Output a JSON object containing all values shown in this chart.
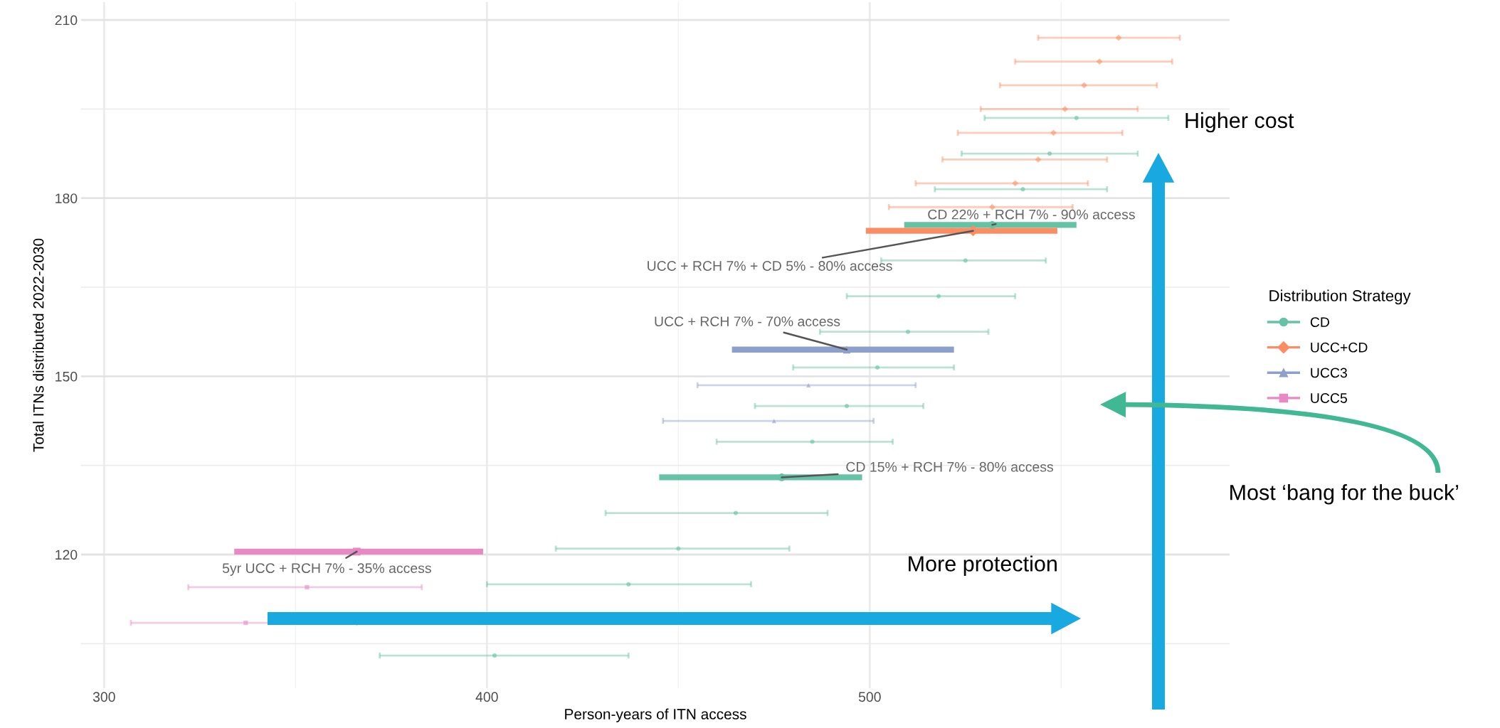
{
  "chart_data": {
    "type": "scatter",
    "xlabel": "Person-years of ITN access",
    "ylabel": "Total ITNs distributed 2022-2030",
    "legend_title": "Distribution Strategy",
    "legend": "right",
    "grid": true,
    "xlim": [
      294,
      594
    ],
    "xticks": [
      300,
      400,
      500
    ],
    "ylim": [
      97.5,
      213
    ],
    "yticks": [
      120,
      150,
      180,
      210
    ],
    "series": [
      {
        "name": "CD",
        "color": "#66c2a5",
        "marker": "circle",
        "x": [
          554,
          547,
          540,
          525,
          518,
          510,
          502,
          494,
          485,
          465,
          450,
          437,
          402
        ],
        "values": [
          193.5,
          187.5,
          181.5,
          169.5,
          163.5,
          157.5,
          151.5,
          145,
          139,
          127,
          121,
          115,
          103
        ],
        "xerrors": [
          [
            530,
            578
          ],
          [
            524,
            570
          ],
          [
            517,
            562
          ],
          [
            503,
            546
          ],
          [
            494,
            538
          ],
          [
            487,
            531
          ],
          [
            480,
            522
          ],
          [
            470,
            514
          ],
          [
            460,
            506
          ],
          [
            431,
            489
          ],
          [
            418,
            479
          ],
          [
            400,
            469
          ],
          [
            372,
            437
          ]
        ]
      },
      {
        "name": "UCC+CD",
        "color": "#fc8d62",
        "marker": "diamond",
        "x": [
          565,
          560,
          556,
          551,
          548,
          544,
          538,
          532
        ],
        "values": [
          207,
          203,
          199,
          195,
          191,
          186.5,
          182.5,
          178.5
        ],
        "xerrors": [
          [
            544,
            581
          ],
          [
            538,
            579
          ],
          [
            534,
            575
          ],
          [
            529,
            570
          ],
          [
            523,
            566
          ],
          [
            519,
            562
          ],
          [
            512,
            557
          ],
          [
            505,
            553
          ]
        ]
      },
      {
        "name": "UCC3",
        "color": "#8da0cb",
        "marker": "triangle",
        "x": [
          484,
          475
        ],
        "values": [
          148.5,
          142.5
        ],
        "xerrors": [
          [
            455,
            512
          ],
          [
            446,
            501
          ]
        ]
      },
      {
        "name": "UCC5",
        "color": "#e78ac3",
        "marker": "square",
        "x": [
          353,
          337
        ],
        "values": [
          114.5,
          108.5
        ],
        "xerrors": [
          [
            322,
            383
          ],
          [
            307,
            366
          ]
        ]
      },
      {
        "color": "#66c2a5",
        "marker": "circle",
        "x": [
          532,
          477
        ],
        "values": [
          175.5,
          133
        ],
        "xerrors": [
          [
            509,
            554
          ],
          [
            445,
            498
          ]
        ]
      },
      {
        "color": "#fc8d62",
        "marker": "diamond",
        "x": [
          527
        ],
        "values": [
          174.5
        ],
        "xerrors": [
          [
            499,
            549
          ]
        ]
      },
      {
        "color": "#8da0cb",
        "marker": "triangle",
        "x": [
          494
        ],
        "values": [
          154.5
        ],
        "xerrors": [
          [
            464,
            522
          ]
        ]
      },
      {
        "color": "#e78ac3",
        "marker": "square",
        "x": [
          366
        ],
        "values": [
          120.5
        ],
        "xerrors": [
          [
            334,
            399
          ]
        ]
      }
    ],
    "annotations": [
      {
        "text": "CD 22% + RCH 7% - 90% access",
        "x": 532,
        "y": 175.5
      },
      {
        "text": "UCC + RCH 7% + CD 5% - 80% access",
        "x": 527,
        "y": 174.5
      },
      {
        "text": "UCC + RCH 7% - 70% access",
        "x": 494,
        "y": 154.5
      },
      {
        "text": "CD 15% + RCH 7% - 80% access",
        "x": 477,
        "y": 133
      },
      {
        "text": "5yr UCC + RCH 7% - 35% access",
        "x": 366,
        "y": 120.5
      },
      "Higher cost",
      "More protection",
      "Most ‘bang for the buck’"
    ]
  }
}
